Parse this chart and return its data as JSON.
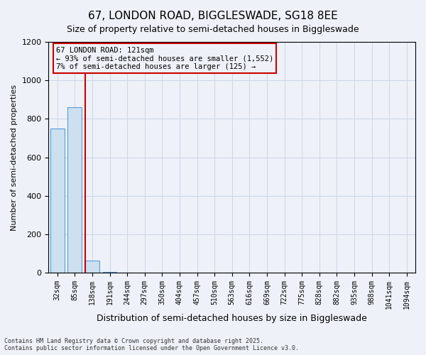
{
  "title1": "67, LONDON ROAD, BIGGLESWADE, SG18 8EE",
  "title2": "Size of property relative to semi-detached houses in Biggleswade",
  "xlabel": "Distribution of semi-detached houses by size in Biggleswade",
  "ylabel": "Number of semi-detached properties",
  "bins": [
    "32sqm",
    "85sqm",
    "138sqm",
    "191sqm",
    "244sqm",
    "297sqm",
    "350sqm",
    "404sqm",
    "457sqm",
    "510sqm",
    "563sqm",
    "616sqm",
    "669sqm",
    "722sqm",
    "775sqm",
    "828sqm",
    "882sqm",
    "935sqm",
    "988sqm",
    "1041sqm",
    "1094sqm"
  ],
  "values": [
    750,
    860,
    65,
    5,
    0,
    0,
    0,
    0,
    0,
    0,
    0,
    0,
    0,
    0,
    0,
    0,
    0,
    0,
    0,
    0,
    0
  ],
  "bar_color": "#cce0f0",
  "bar_edge_color": "#5b9bd5",
  "grid_color": "#d0d8e8",
  "background_color": "#eef2f8",
  "vline_x": 1.6,
  "vline_color": "#cc0000",
  "annotation_title": "67 LONDON ROAD: 121sqm",
  "annotation_line1": "← 93% of semi-detached houses are smaller (1,552)",
  "annotation_line2": "7% of semi-detached houses are larger (125) →",
  "annotation_box_color": "#cc0000",
  "ylim": [
    0,
    1200
  ],
  "yticks": [
    0,
    200,
    400,
    600,
    800,
    1000,
    1200
  ],
  "footer1": "Contains HM Land Registry data © Crown copyright and database right 2025.",
  "footer2": "Contains public sector information licensed under the Open Government Licence v3.0."
}
